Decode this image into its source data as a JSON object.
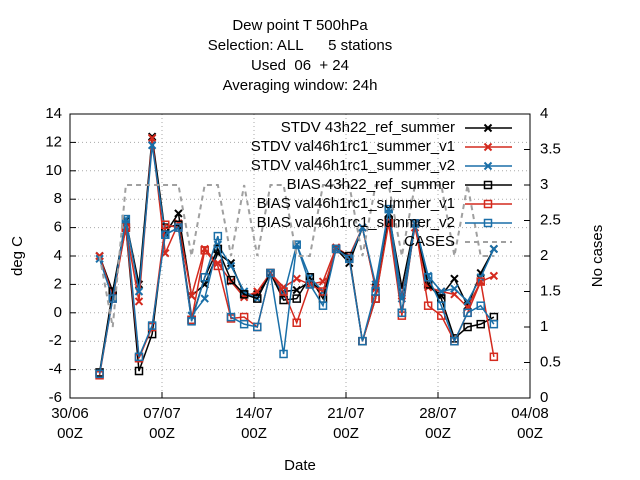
{
  "chart_data": {
    "type": "line",
    "title": "Dew point T 500hPa",
    "subtitle": [
      "Selection: ALL      5 stations",
      "Used  06  + 24",
      "Averaging window: 24h"
    ],
    "xlabel": "Date",
    "ylabel": "deg C",
    "y2label": "No cases",
    "xlim": [
      0,
      35
    ],
    "xticks": [
      {
        "value": 0,
        "label": "30/06\n00Z"
      },
      {
        "value": 7,
        "label": "07/07\n00Z"
      },
      {
        "value": 14,
        "label": "14/07\n00Z"
      },
      {
        "value": 21,
        "label": "21/07\n00Z"
      },
      {
        "value": 28,
        "label": "28/07\n00Z"
      },
      {
        "value": 35,
        "label": "04/08\n00Z"
      }
    ],
    "ylim": [
      -6,
      14
    ],
    "yticks": [
      -6,
      -4,
      -2,
      0,
      2,
      4,
      6,
      8,
      10,
      12,
      14
    ],
    "y2lim": [
      0,
      4
    ],
    "y2ticks": [
      0,
      0.5,
      1,
      1.5,
      2,
      2.5,
      3,
      3.5,
      4
    ],
    "grid": true,
    "legend": "top-right",
    "x": [
      2.25,
      3.25,
      4.25,
      5.25,
      6.25,
      7.25,
      8.25,
      9.25,
      10.25,
      11.25,
      12.25,
      13.25,
      14.25,
      15.25,
      16.25,
      17.25,
      18.25,
      19.25,
      20.25,
      21.25,
      22.25,
      23.25,
      24.25,
      25.25,
      26.25,
      27.25,
      28.25,
      29.25,
      30.25,
      31.25,
      32.25
    ],
    "series": [
      {
        "name": "STDV 43h22_ref_summer",
        "color": "#000000",
        "marker": "x",
        "values": [
          4.0,
          1.5,
          6.5,
          2.0,
          12.4,
          5.6,
          7.0,
          1.2,
          2.0,
          4.2,
          3.5,
          1.3,
          1.3,
          2.8,
          1.5,
          1.6,
          2.2,
          1.5,
          4.5,
          3.5,
          6.0,
          1.8,
          7.0,
          1.8,
          6.3,
          2.0,
          1.2,
          2.4,
          0.5,
          2.8,
          4.5
        ]
      },
      {
        "name": "STDV val46h1rc1_summer_v1",
        "color": "#d42a1e",
        "marker": "x",
        "values": [
          4.0,
          1.2,
          6.0,
          0.8,
          12.3,
          4.2,
          6.3,
          1.2,
          4.5,
          3.5,
          2.2,
          1.1,
          1.5,
          2.8,
          1.8,
          2.4,
          2.0,
          2.2,
          4.6,
          4.0,
          6.0,
          1.7,
          6.4,
          1.2,
          6.0,
          1.8,
          1.5,
          1.3,
          0.4,
          2.2,
          2.6
        ]
      },
      {
        "name": "STDV val46h1rc1_summer_v2",
        "color": "#1a6fa8",
        "marker": "x",
        "values": [
          3.8,
          1.0,
          6.6,
          1.5,
          11.8,
          5.5,
          6.0,
          -0.2,
          1.0,
          4.8,
          3.3,
          1.5,
          1.0,
          2.8,
          1.2,
          4.8,
          2.5,
          1.5,
          4.5,
          3.8,
          6.0,
          2.0,
          7.3,
          1.0,
          6.3,
          2.6,
          1.5,
          1.7,
          0.8,
          2.5,
          4.5
        ]
      },
      {
        "name": "BIAS 43h22_ref_summer",
        "color": "#000000",
        "marker": "square",
        "values": [
          -4.2,
          1.5,
          6.0,
          -4.1,
          -1.5,
          6.0,
          6.2,
          -0.5,
          2.5,
          4.5,
          2.3,
          1.3,
          1.0,
          2.8,
          0.9,
          1.0,
          2.5,
          1.0,
          4.5,
          4.0,
          -2.0,
          1.0,
          6.5,
          0.0,
          6.3,
          2.0,
          1.0,
          -1.8,
          -1.0,
          -0.8,
          -0.3
        ]
      },
      {
        "name": "BIAS val46h1rc1_summer_v1",
        "color": "#d42a1e",
        "marker": "square",
        "values": [
          -4.4,
          1.0,
          6.0,
          -3.2,
          -1.0,
          6.2,
          6.0,
          -0.5,
          4.4,
          3.3,
          -0.4,
          -0.3,
          -1.0,
          2.8,
          1.5,
          -0.7,
          2.0,
          1.5,
          4.5,
          3.8,
          -2.0,
          1.0,
          6.3,
          -0.2,
          6.3,
          0.5,
          -0.2,
          -2.0,
          0.0,
          2.2,
          -3.1
        ]
      },
      {
        "name": "BIAS val46h1rc1_summer_v2",
        "color": "#1a6fa8",
        "marker": "square",
        "values": [
          -4.3,
          1.0,
          6.6,
          -3.1,
          -0.9,
          5.5,
          6.0,
          -0.6,
          2.5,
          5.4,
          -0.3,
          -0.8,
          -1.0,
          2.8,
          -2.9,
          4.8,
          2.0,
          0.5,
          4.5,
          3.8,
          -2.0,
          1.5,
          7.3,
          0.0,
          6.3,
          2.5,
          0.5,
          -2.0,
          0.0,
          0.5,
          -0.8
        ]
      },
      {
        "name": "CASES",
        "color": "#a0a0a0",
        "marker": "none",
        "dashed": true,
        "axis": "y2",
        "values": [
          2,
          1,
          3,
          3,
          3,
          3,
          3,
          2,
          3,
          3,
          2,
          3,
          2,
          3,
          3,
          2,
          2,
          3,
          3,
          3,
          2,
          3,
          3,
          2,
          3,
          3,
          3,
          2,
          3,
          2,
          2
        ]
      }
    ]
  }
}
